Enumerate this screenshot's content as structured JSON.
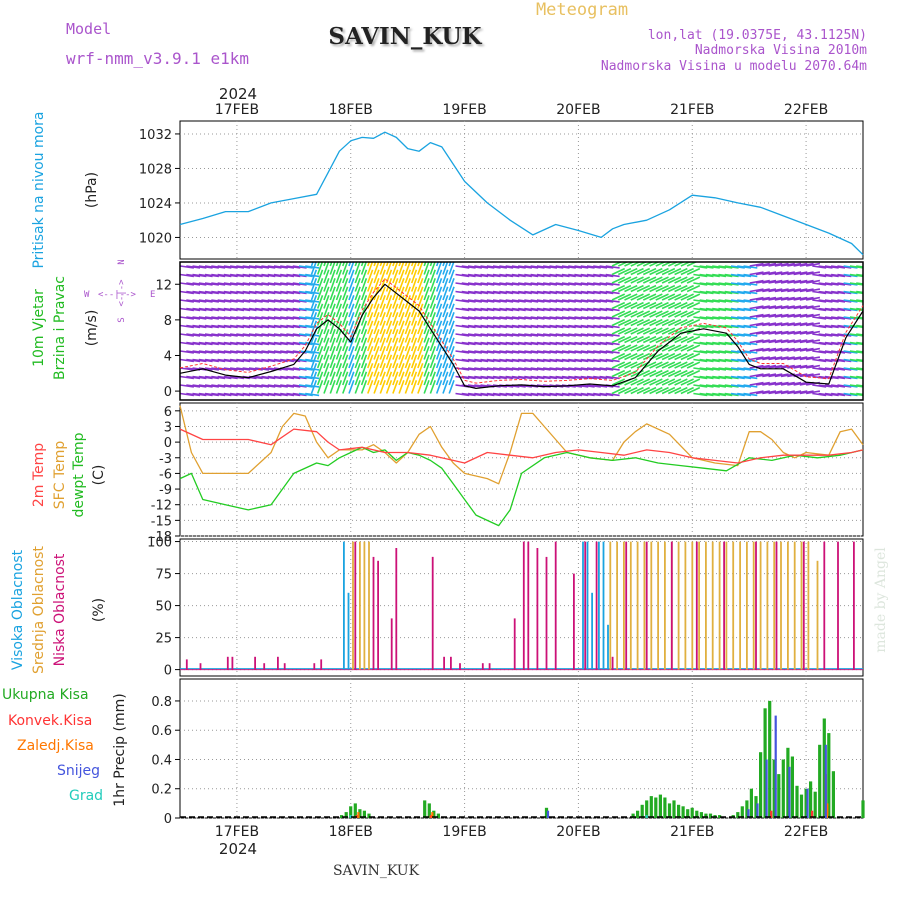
{
  "header": {
    "model_label": "Model",
    "model_name": "wrf-nmm_v3.9.1  e1km",
    "title": "SAVIN_KUK",
    "meteogram_label": "Meteogram",
    "lonlat": "lon,lat (19.0375E, 43.1125N)",
    "elevation": "Nadmorska Visina 2010m",
    "model_elevation": "Nadmorska Visina u modelu 2070.64m",
    "year": "2024",
    "footer_station": "SAVIN_KUK",
    "watermark": "made by Angel"
  },
  "colors": {
    "pressure": "#1aa3e0",
    "temp2m": "#ff4444",
    "sfc_temp": "#e0a030",
    "dewpoint": "#22cc22",
    "high_cloud": "#1aa3e0",
    "mid_cloud": "#e0b040",
    "low_cloud": "#cc1177",
    "total_precip": "#22aa22",
    "conv_precip": "#ff3333",
    "freezing_precip": "#ff7700",
    "snow": "#4455dd",
    "hail": "#22ccbb",
    "model_text": "#aa55cc",
    "meteogram_text": "#e8c060",
    "wind_purple": "#8833cc",
    "wind_green": "#33dd55",
    "wind_yellow": "#ffcc00",
    "wind_cyan": "#22aaee"
  },
  "chart_data": {
    "type": "line",
    "x_days": [
      "17FEB",
      "18FEB",
      "19FEB",
      "20FEB",
      "21FEB",
      "22FEB"
    ],
    "x_range_days": [
      16.5,
      22.5
    ],
    "panels": [
      {
        "id": "pressure",
        "ylabel_main": "Pritisak na nivou mora",
        "ylabel_unit": "(hPa)",
        "ylim": [
          1017.5,
          1033.5
        ],
        "yticks": [
          1020,
          1024,
          1028,
          1032
        ],
        "series": [
          {
            "x": [
              16.5,
              16.7,
              16.9,
              17.1,
              17.3,
              17.5,
              17.7,
              17.8,
              17.9,
              18.0,
              18.1,
              18.2,
              18.3,
              18.4,
              18.5,
              18.6,
              18.7,
              18.8,
              18.9,
              19.0,
              19.2,
              19.4,
              19.6,
              19.8,
              20.0,
              20.2,
              20.3,
              20.4,
              20.6,
              20.8,
              21.0,
              21.2,
              21.4,
              21.6,
              21.8,
              22.0,
              22.2,
              22.4,
              22.5
            ],
            "values": [
              1021.5,
              1022.2,
              1023.0,
              1023.0,
              1024.0,
              1024.5,
              1025.0,
              1027.5,
              1030.0,
              1031.2,
              1031.6,
              1031.5,
              1032.2,
              1031.6,
              1030.3,
              1030.0,
              1031.0,
              1030.5,
              1028.5,
              1026.5,
              1024.0,
              1022.0,
              1020.3,
              1021.5,
              1020.8,
              1020.0,
              1021.0,
              1021.5,
              1022.0,
              1023.2,
              1024.9,
              1024.6,
              1024.0,
              1023.5,
              1022.5,
              1021.5,
              1020.5,
              1019.3,
              1018.0
            ]
          }
        ]
      },
      {
        "id": "wind",
        "ylabel_main": "10m Vjetar",
        "ylabel_sub": "Brzina i Pravac",
        "ylabel_unit": "(m/s)",
        "compass": {
          "n": "N",
          "w": "W",
          "e": "E",
          "s": "S",
          "arrow_ns": "<-|->",
          "arrow_we": "<--|-->"
        },
        "ylim": [
          -1,
          14.5
        ],
        "yticks": [
          0,
          4,
          8,
          12
        ],
        "series": [
          {
            "x": [
              16.5,
              16.7,
              16.9,
              17.1,
              17.3,
              17.5,
              17.6,
              17.7,
              17.8,
              17.9,
              18.0,
              18.1,
              18.2,
              18.3,
              18.4,
              18.5,
              18.6,
              18.7,
              18.8,
              18.9,
              19.0,
              19.1,
              19.3,
              19.5,
              19.7,
              19.9,
              20.1,
              20.3,
              20.5,
              20.7,
              20.9,
              21.1,
              21.3,
              21.4,
              21.5,
              21.6,
              21.8,
              22.0,
              22.2,
              22.35,
              22.5
            ],
            "values": [
              2.0,
              2.5,
              1.8,
              1.5,
              2.2,
              3.0,
              4.5,
              7.0,
              8.0,
              7.0,
              5.5,
              8.5,
              10.5,
              12.0,
              11.0,
              10.0,
              9.0,
              7.0,
              5.0,
              3.0,
              0.6,
              0.3,
              0.6,
              0.7,
              0.5,
              0.6,
              0.8,
              0.6,
              1.5,
              4.5,
              6.5,
              7.0,
              6.5,
              5.0,
              3.0,
              2.5,
              2.5,
              1.0,
              0.8,
              6.0,
              9.0
            ]
          }
        ]
      },
      {
        "id": "temperature",
        "ylabel_lines": [
          "2m Temp",
          "SFC Temp",
          "dewpt Temp"
        ],
        "ylabel_unit": "(C)",
        "ylim": [
          -18,
          7.5
        ],
        "yticks": [
          6,
          3,
          0,
          -3,
          -6,
          -9,
          -12,
          -15,
          -18
        ],
        "series": [
          {
            "name": "2m Temp",
            "x": [
              16.5,
              16.7,
              16.9,
              17.1,
              17.3,
              17.5,
              17.7,
              17.8,
              17.9,
              18.1,
              18.3,
              18.5,
              18.7,
              18.9,
              19.0,
              19.2,
              19.4,
              19.6,
              19.8,
              20.0,
              20.2,
              20.4,
              20.6,
              20.8,
              21.0,
              21.2,
              21.4,
              21.6,
              21.8,
              22.0,
              22.2,
              22.4,
              22.5
            ],
            "values": [
              2.5,
              0.5,
              0.5,
              0.5,
              -0.5,
              2.5,
              2.0,
              0.0,
              -1.5,
              -1.0,
              -2.0,
              -2.0,
              -2.5,
              -3.5,
              -4.0,
              -2.0,
              -2.5,
              -3.0,
              -2.0,
              -1.5,
              -2.0,
              -2.5,
              -1.5,
              -2.0,
              -3.0,
              -3.5,
              -4.0,
              -3.0,
              -2.5,
              -2.5,
              -2.5,
              -2.0,
              -1.5
            ]
          },
          {
            "name": "SFC Temp",
            "x": [
              16.5,
              16.6,
              16.7,
              16.9,
              17.1,
              17.3,
              17.4,
              17.5,
              17.6,
              17.7,
              17.8,
              17.9,
              18.1,
              18.2,
              18.3,
              18.4,
              18.5,
              18.6,
              18.7,
              18.8,
              18.9,
              19.0,
              19.1,
              19.2,
              19.3,
              19.4,
              19.5,
              19.6,
              19.7,
              19.9,
              20.1,
              20.3,
              20.4,
              20.5,
              20.6,
              20.8,
              21.0,
              21.2,
              21.4,
              21.5,
              21.6,
              21.7,
              21.8,
              21.9,
              22.0,
              22.2,
              22.3,
              22.4,
              22.5
            ],
            "values": [
              7.0,
              -2.0,
              -6.0,
              -6.0,
              -6.0,
              -2.0,
              3.0,
              5.5,
              5.0,
              0.0,
              -3.0,
              -1.5,
              -1.5,
              -0.5,
              -2.0,
              -4.0,
              -2.0,
              1.5,
              3.0,
              -1.0,
              -4.0,
              -6.0,
              -6.5,
              -7.0,
              -8.0,
              -2.0,
              5.5,
              5.5,
              3.0,
              -2.0,
              -3.0,
              -3.5,
              0.0,
              2.0,
              3.5,
              1.5,
              -3.0,
              -4.0,
              -4.5,
              2.0,
              2.0,
              0.5,
              -2.0,
              -3.0,
              -2.0,
              -2.5,
              2.0,
              2.5,
              -0.5
            ]
          },
          {
            "name": "dewpt Temp",
            "x": [
              16.5,
              16.6,
              16.7,
              16.9,
              17.1,
              17.3,
              17.5,
              17.7,
              17.8,
              17.9,
              18.0,
              18.1,
              18.2,
              18.3,
              18.4,
              18.5,
              18.6,
              18.7,
              18.8,
              18.9,
              19.0,
              19.1,
              19.2,
              19.3,
              19.4,
              19.5,
              19.7,
              19.9,
              20.1,
              20.3,
              20.5,
              20.7,
              20.9,
              21.1,
              21.3,
              21.5,
              21.7,
              21.9,
              22.1,
              22.3,
              22.5
            ],
            "values": [
              -7.0,
              -6.0,
              -11.0,
              -12.0,
              -13.0,
              -12.0,
              -6.0,
              -4.0,
              -4.5,
              -3.0,
              -2.0,
              -1.0,
              -2.0,
              -1.5,
              -3.5,
              -2.0,
              -2.5,
              -3.5,
              -5.0,
              -8.0,
              -11.0,
              -14.0,
              -15.0,
              -16.0,
              -13.0,
              -6.0,
              -3.0,
              -2.0,
              -3.0,
              -3.5,
              -3.0,
              -4.0,
              -4.5,
              -5.0,
              -5.5,
              -3.0,
              -3.5,
              -2.5,
              -3.0,
              -2.5,
              -1.5
            ]
          }
        ]
      },
      {
        "id": "clouds",
        "ylabel_lines": [
          "Visoka Oblacnost",
          "Srednja Oblacnost",
          "Niska Oblacnost"
        ],
        "ylabel_unit": "(%)",
        "ylim": [
          -5,
          102
        ],
        "yticks": [
          0,
          25,
          50,
          75,
          100
        ],
        "series": [
          {
            "name": "Visoka Oblacnost",
            "x": [
              17.94,
              17.98,
              20.04,
              20.08,
              20.12,
              20.18,
              20.22,
              20.26
            ],
            "values": [
              100,
              60,
              100,
              100,
              60,
              100,
              100,
              35
            ]
          },
          {
            "name": "Srednja Oblacnost",
            "x": [
              18.02,
              18.08,
              18.12,
              18.16,
              20.28,
              20.34,
              20.4,
              20.46,
              20.52,
              20.58,
              20.64,
              20.7,
              20.76,
              20.82,
              20.88,
              20.94,
              21.0,
              21.06,
              21.12,
              21.18,
              21.24,
              21.3,
              21.36,
              21.42,
              21.48,
              21.54,
              21.6,
              21.66,
              21.72,
              21.78,
              21.84,
              21.9,
              21.96,
              22.02,
              22.1
            ],
            "values": [
              100,
              100,
              100,
              100,
              100,
              100,
              100,
              100,
              100,
              100,
              100,
              100,
              100,
              100,
              100,
              100,
              100,
              100,
              100,
              100,
              100,
              100,
              100,
              100,
              100,
              100,
              100,
              100,
              100,
              100,
              100,
              100,
              100,
              100,
              85
            ]
          },
          {
            "name": "Niska Oblacnost",
            "x": [
              16.56,
              16.68,
              16.92,
              16.96,
              17.16,
              17.24,
              17.36,
              17.42,
              17.68,
              17.74,
              18.04,
              18.2,
              18.24,
              18.36,
              18.4,
              18.72,
              18.82,
              18.88,
              18.96,
              19.16,
              19.22,
              19.44,
              19.52,
              19.56,
              19.64,
              19.72,
              19.8,
              19.96,
              20.06,
              20.16,
              20.3,
              20.42,
              20.6,
              20.82,
              21.04,
              21.28,
              21.56,
              21.74,
              21.98,
              22.16,
              22.28,
              22.42
            ],
            "values": [
              8,
              5,
              10,
              10,
              10,
              5,
              10,
              5,
              5,
              8,
              100,
              88,
              85,
              40,
              95,
              88,
              10,
              10,
              5,
              5,
              5,
              40,
              100,
              100,
              95,
              88,
              100,
              75,
              100,
              100,
              10,
              100,
              100,
              100,
              100,
              100,
              100,
              100,
              100,
              100,
              100,
              100
            ]
          }
        ]
      },
      {
        "id": "precip",
        "legend": [
          "Ukupna Kisa",
          "Konvek.Kisa",
          "Zaledj.Kisa",
          "Snijeg",
          "Grad"
        ],
        "ylabel_unit": "1hr Precip (mm)",
        "ylim": [
          0,
          0.95
        ],
        "yticks": [
          0,
          0.2,
          0.4,
          0.6,
          0.8
        ],
        "series": [
          {
            "name": "Ukupna Kisa",
            "x": [
              17.92,
              17.96,
              18.0,
              18.04,
              18.08,
              18.12,
              18.16,
              18.65,
              18.69,
              18.73,
              18.77,
              19.72,
              20.48,
              20.52,
              20.56,
              20.6,
              20.64,
              20.68,
              20.72,
              20.76,
              20.8,
              20.84,
              20.88,
              20.92,
              20.96,
              21.0,
              21.04,
              21.08,
              21.12,
              21.16,
              21.2,
              21.24,
              21.36,
              21.4,
              21.44,
              21.48,
              21.52,
              21.56,
              21.6,
              21.64,
              21.68,
              21.72,
              21.76,
              21.8,
              21.84,
              21.88,
              21.92,
              21.96,
              22.0,
              22.04,
              22.08,
              22.12,
              22.16,
              22.2,
              22.24,
              22.5
            ],
            "values": [
              0.02,
              0.04,
              0.08,
              0.1,
              0.06,
              0.05,
              0.03,
              0.12,
              0.1,
              0.05,
              0.03,
              0.07,
              0.03,
              0.05,
              0.09,
              0.12,
              0.15,
              0.14,
              0.16,
              0.14,
              0.1,
              0.12,
              0.09,
              0.08,
              0.06,
              0.07,
              0.05,
              0.04,
              0.03,
              0.03,
              0.02,
              0.02,
              0.02,
              0.04,
              0.08,
              0.12,
              0.2,
              0.15,
              0.45,
              0.75,
              0.8,
              0.4,
              0.3,
              0.4,
              0.48,
              0.42,
              0.22,
              0.16,
              0.2,
              0.25,
              0.18,
              0.5,
              0.68,
              0.58,
              0.32,
              0.12
            ]
          },
          {
            "name": "Konvek.Kisa",
            "x": [
              18.04,
              18.69,
              21.68,
              22.04,
              22.16
            ],
            "values": [
              0.02,
              0.02,
              0.05,
              0.05,
              0.3
            ]
          },
          {
            "name": "Zaledj.Kisa",
            "x": [
              18.08,
              18.73,
              22.2
            ],
            "values": [
              0.04,
              0.04,
              0.1
            ]
          },
          {
            "name": "Snijeg",
            "x": [
              19.72,
              21.48,
              21.56,
              21.64,
              21.72,
              21.84,
              22.0,
              22.16
            ],
            "values": [
              0.05,
              0.06,
              0.1,
              0.4,
              0.7,
              0.35,
              0.2,
              0.5
            ]
          },
          {
            "name": "Grad",
            "x": [
              18.0,
              20.6
            ],
            "values": [
              0.02,
              0.02
            ]
          }
        ]
      }
    ]
  }
}
